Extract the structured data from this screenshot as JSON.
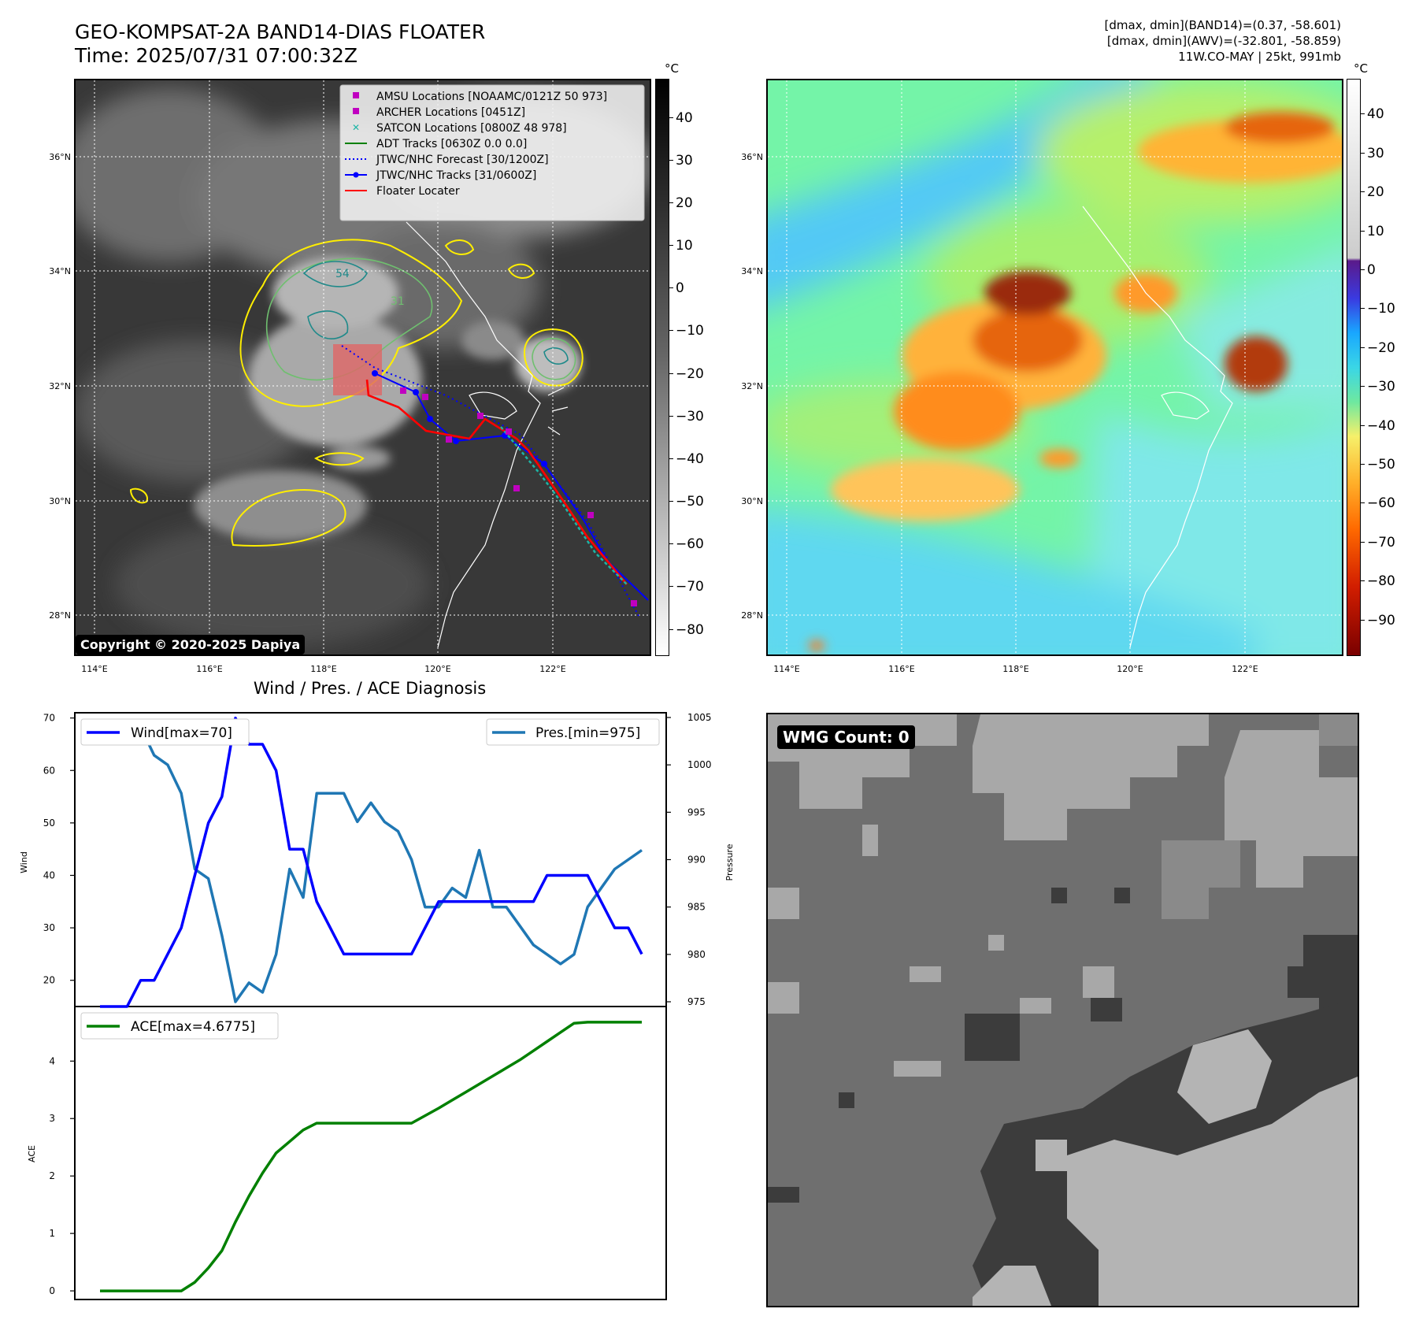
{
  "header": {
    "title_line1": "GEO-KOMPSAT-2A BAND14-DIAS FLOATER",
    "title_line2": "Time: 2025/07/31 07:00:32Z",
    "info_line1": "[dmax, dmin](BAND14)=(0.37, -58.601)",
    "info_line2": "[dmax, dmin](AWV)=(-32.801, -58.859)",
    "info_line3": "11W.CO-MAY | 25kt, 991mb"
  },
  "ir_map": {
    "legend": [
      {
        "label": "AMSU Locations [NOAAMC/0121Z 50 973]",
        "color": "#c000c0",
        "marker": "square"
      },
      {
        "label": "ARCHER Locations [0451Z]",
        "color": "#c000c0",
        "marker": "square"
      },
      {
        "label": "SATCON Locations [0800Z 48 978]",
        "color": "#1cb5a6",
        "marker": "x"
      },
      {
        "label": "ADT Tracks [0630Z 0.0 0.0]",
        "color": "#008000",
        "marker": "line"
      },
      {
        "label": "JTWC/NHC Forecast [30/1200Z]",
        "color": "#0000ff",
        "marker": "dotted"
      },
      {
        "label": "JTWC/NHC Tracks [31/0600Z]",
        "color": "#0000ff",
        "marker": "dotline"
      },
      {
        "label": "Floater Locater",
        "color": "#ff0000",
        "marker": "line"
      }
    ],
    "copyright": "Copyright © 2020-2025 Dapiya",
    "contour_labels": [
      "31",
      "54"
    ],
    "colorbar_unit": "°C",
    "colorbar_ticks": [
      "40",
      "30",
      "20",
      "10",
      "0",
      "−10",
      "−20",
      "−30",
      "−40",
      "−50",
      "−60",
      "−70",
      "−80"
    ]
  },
  "awv_map": {
    "colorbar_unit": "°C",
    "colorbar_ticks": [
      "40",
      "30",
      "20",
      "10",
      "0",
      "−10",
      "−20",
      "−30",
      "−40",
      "−50",
      "−60",
      "−70",
      "−80",
      "−90"
    ]
  },
  "map_axes": {
    "lat_labels": [
      "36°N",
      "34°N",
      "32°N",
      "30°N",
      "28°N"
    ],
    "lon_labels": [
      "114°E",
      "116°E",
      "118°E",
      "120°E",
      "122°E"
    ]
  },
  "wmg_panel": {
    "count_label": "WMG Count: 0"
  },
  "colors": {
    "wind": "#0000ff",
    "pressure": "#1f77b4",
    "ace": "#008000",
    "floater": "#ff0000",
    "track": "#0000ff"
  },
  "chart_data": [
    {
      "type": "line",
      "title": "Wind / Pres. / ACE Diagnosis",
      "ylabel": "Wind",
      "y2label": "Pressure",
      "ylim": [
        15,
        71
      ],
      "y2lim": [
        974.5,
        1005.5
      ],
      "yticks": [
        "20",
        "30",
        "40",
        "50",
        "60",
        "70"
      ],
      "y2ticks": [
        "975",
        "980",
        "985",
        "990",
        "995",
        "1000",
        "1005"
      ],
      "x": [
        0,
        1,
        2,
        3,
        4,
        5,
        6,
        7,
        8,
        9,
        10,
        11,
        12,
        13,
        14,
        15,
        16,
        17,
        18,
        19,
        20,
        21,
        22,
        23,
        24,
        25,
        26,
        27,
        28,
        29,
        30,
        31,
        32,
        33,
        34,
        35,
        36,
        37,
        38,
        39,
        40
      ],
      "series": [
        {
          "name": "Wind[max=70]",
          "axis": "left",
          "values": [
            15,
            15,
            15,
            20,
            20,
            25,
            30,
            40,
            50,
            55,
            70,
            65,
            65,
            60,
            45,
            45,
            35,
            30,
            25,
            25,
            25,
            25,
            25,
            25,
            30,
            35,
            35,
            35,
            35,
            35,
            35,
            35,
            35,
            40,
            40,
            40,
            40,
            35,
            30,
            30,
            25
          ]
        },
        {
          "name": "Pres.[min=975]",
          "axis": "right",
          "values": [
            1004,
            1004,
            1004,
            1004,
            1001,
            1000,
            997,
            989,
            988,
            982,
            975,
            977,
            976,
            980,
            989,
            986,
            997,
            997,
            997,
            994,
            996,
            994,
            993,
            990,
            985,
            985,
            987,
            986,
            991,
            985,
            985,
            983,
            981,
            980,
            979,
            980,
            985,
            987,
            989,
            990,
            991
          ]
        }
      ]
    },
    {
      "type": "line",
      "ylabel": "ACE",
      "ylim": [
        -0.15,
        4.95
      ],
      "yticks": [
        "0",
        "1",
        "2",
        "3",
        "4"
      ],
      "x": [
        0,
        1,
        2,
        3,
        4,
        5,
        6,
        7,
        8,
        9,
        10,
        11,
        12,
        13,
        14,
        15,
        16,
        17,
        18,
        19,
        20,
        21,
        22,
        23,
        24,
        25,
        26,
        27,
        28,
        29,
        30,
        31,
        32,
        33,
        34,
        35,
        36,
        37,
        38,
        39,
        40
      ],
      "series": [
        {
          "name": "ACE[max=4.6775]",
          "values": [
            0,
            0,
            0,
            0,
            0,
            0,
            0,
            0.15,
            0.4,
            0.7,
            1.2,
            1.65,
            2.05,
            2.4,
            2.6,
            2.8,
            2.92,
            2.92,
            2.92,
            2.92,
            2.92,
            2.92,
            2.92,
            2.92,
            3.05,
            3.18,
            3.32,
            3.46,
            3.6,
            3.74,
            3.88,
            4.02,
            4.18,
            4.34,
            4.5,
            4.66,
            4.6775,
            4.6775,
            4.6775,
            4.6775,
            4.6775
          ]
        }
      ]
    }
  ]
}
